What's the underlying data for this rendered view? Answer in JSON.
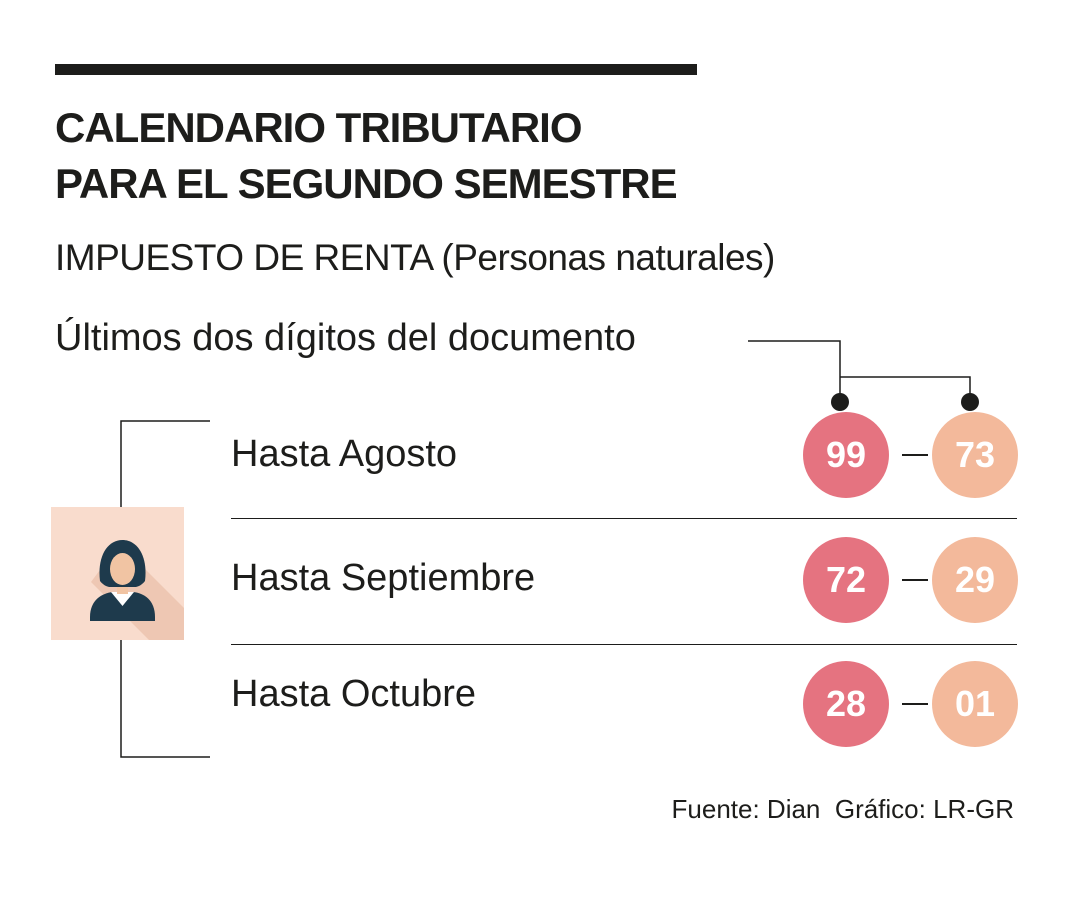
{
  "header": {
    "title_line1": "CALENDARIO TRIBUTARIO",
    "title_line2": "PARA EL SEGUNDO SEMESTRE",
    "subtitle": "IMPUESTO DE RENTA (Personas naturales)",
    "digits_label": "Últimos dos dígitos del documento"
  },
  "rows": [
    {
      "label": "Hasta Agosto",
      "from": "99",
      "to": "73"
    },
    {
      "label": "Hasta Septiembre",
      "from": "72",
      "to": "29"
    },
    {
      "label": "Hasta Octubre",
      "from": "28",
      "to": "01"
    }
  ],
  "colors": {
    "start_badge": "#e57380",
    "end_badge": "#f3b99b",
    "avatar_background": "#f9dccd",
    "text": "#1d1d1b"
  },
  "icons": {
    "person": "person-avatar-icon"
  },
  "footer": {
    "source": "Fuente: Dian  Gráfico: LR-GR"
  }
}
